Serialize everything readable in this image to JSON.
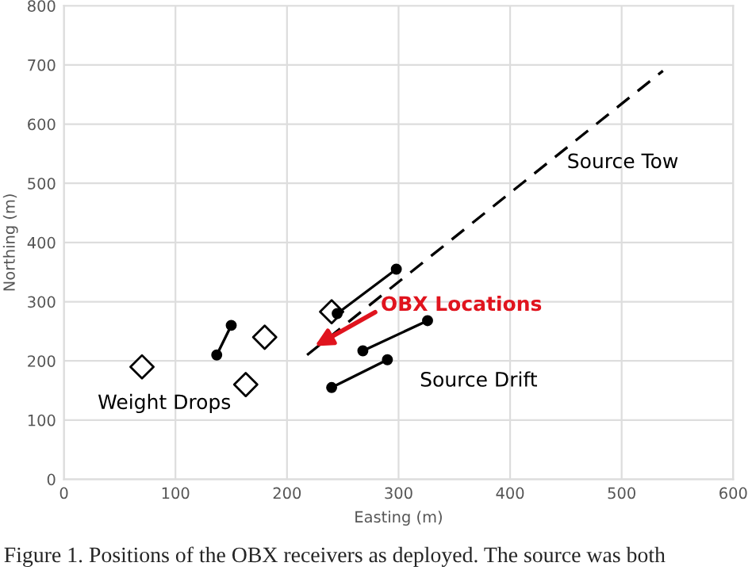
{
  "chart_data": {
    "type": "scatter",
    "xlabel": "Easting (m)",
    "ylabel": "Northing (m)",
    "xlim": [
      0,
      600
    ],
    "ylim": [
      0,
      800
    ],
    "xticks": [
      0,
      100,
      200,
      300,
      400,
      500,
      600
    ],
    "yticks": [
      0,
      100,
      200,
      300,
      400,
      500,
      600,
      700,
      800
    ],
    "grid": true,
    "legend": false,
    "series": [
      {
        "name": "Weight Drops",
        "type": "scatter",
        "marker": "diamond",
        "color": "#000000",
        "x": [
          70,
          163,
          180,
          240
        ],
        "values": [
          190,
          160,
          240,
          283
        ]
      },
      {
        "name": "Source Tow",
        "type": "line",
        "line_style": "dashed",
        "marker": "none",
        "color": "#000000",
        "x": [
          218,
          537
        ],
        "values": [
          210,
          690
        ]
      },
      {
        "name": "Source Drift",
        "type": "line",
        "line_style": "solid",
        "marker": "circle",
        "color": "#000000",
        "x": [
          137,
          150,
          null,
          245,
          298,
          null,
          268,
          326,
          null,
          240,
          290
        ],
        "values": [
          210,
          260,
          null,
          280,
          355,
          null,
          217,
          268,
          null,
          155,
          202
        ]
      }
    ],
    "annotations": [
      {
        "text": "OBX Locations",
        "x": 225,
        "y": 225
      },
      "Figure 1. Positions of the OBX receivers as deployed. The source was both"
    ]
  }
}
